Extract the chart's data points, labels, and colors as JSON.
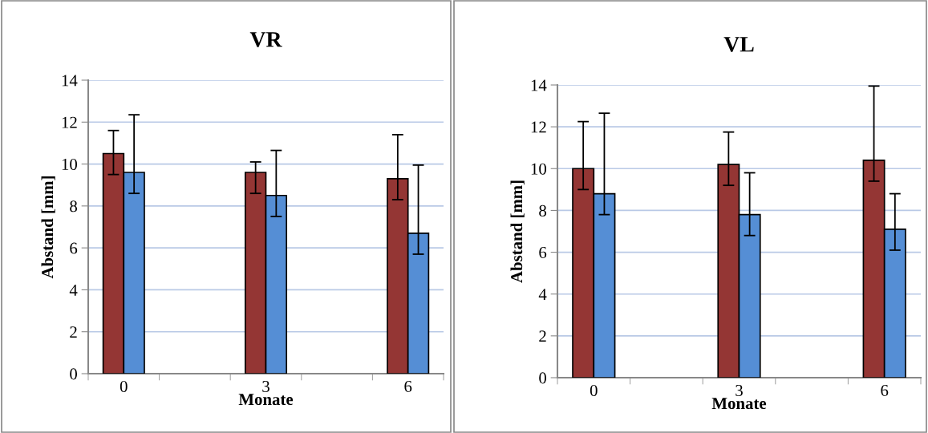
{
  "chart_data": [
    {
      "type": "bar",
      "title": "VR",
      "xlabel": "Monate",
      "ylabel": "Abstand [mm]",
      "categories": [
        "0",
        null,
        "3",
        null,
        "6"
      ],
      "ylim": [
        0,
        14
      ],
      "yticks": [
        0,
        2,
        4,
        6,
        8,
        10,
        12,
        14
      ],
      "grid": "y",
      "legend": false,
      "series": [
        {
          "color": "#943634",
          "values": [
            10.5,
            null,
            9.6,
            null,
            9.3
          ],
          "errors": [
            [
              9.5,
              11.6
            ],
            null,
            [
              8.6,
              10.1
            ],
            null,
            [
              8.3,
              11.4
            ]
          ]
        },
        {
          "color": "#558ed5",
          "values": [
            9.6,
            null,
            8.5,
            null,
            6.7
          ],
          "errors": [
            [
              8.6,
              12.35
            ],
            null,
            [
              7.5,
              10.65
            ],
            null,
            [
              5.7,
              9.95
            ]
          ]
        }
      ]
    },
    {
      "type": "bar",
      "title": "VL",
      "xlabel": "Monate",
      "ylabel": "Abstand [mm]",
      "categories": [
        "0",
        null,
        "3",
        null,
        "6"
      ],
      "ylim": [
        0,
        14
      ],
      "yticks": [
        0,
        2,
        4,
        6,
        8,
        10,
        12,
        14
      ],
      "grid": "y",
      "legend": false,
      "series": [
        {
          "color": "#943634",
          "values": [
            10.0,
            null,
            10.2,
            null,
            10.4
          ],
          "errors": [
            [
              9.0,
              12.25
            ],
            null,
            [
              9.2,
              11.75
            ],
            null,
            [
              9.4,
              13.95
            ]
          ]
        },
        {
          "color": "#558ed5",
          "values": [
            8.8,
            null,
            7.8,
            null,
            7.1
          ],
          "errors": [
            [
              7.8,
              12.65
            ],
            null,
            [
              6.8,
              9.8
            ],
            null,
            [
              6.1,
              8.8
            ]
          ]
        }
      ]
    }
  ]
}
